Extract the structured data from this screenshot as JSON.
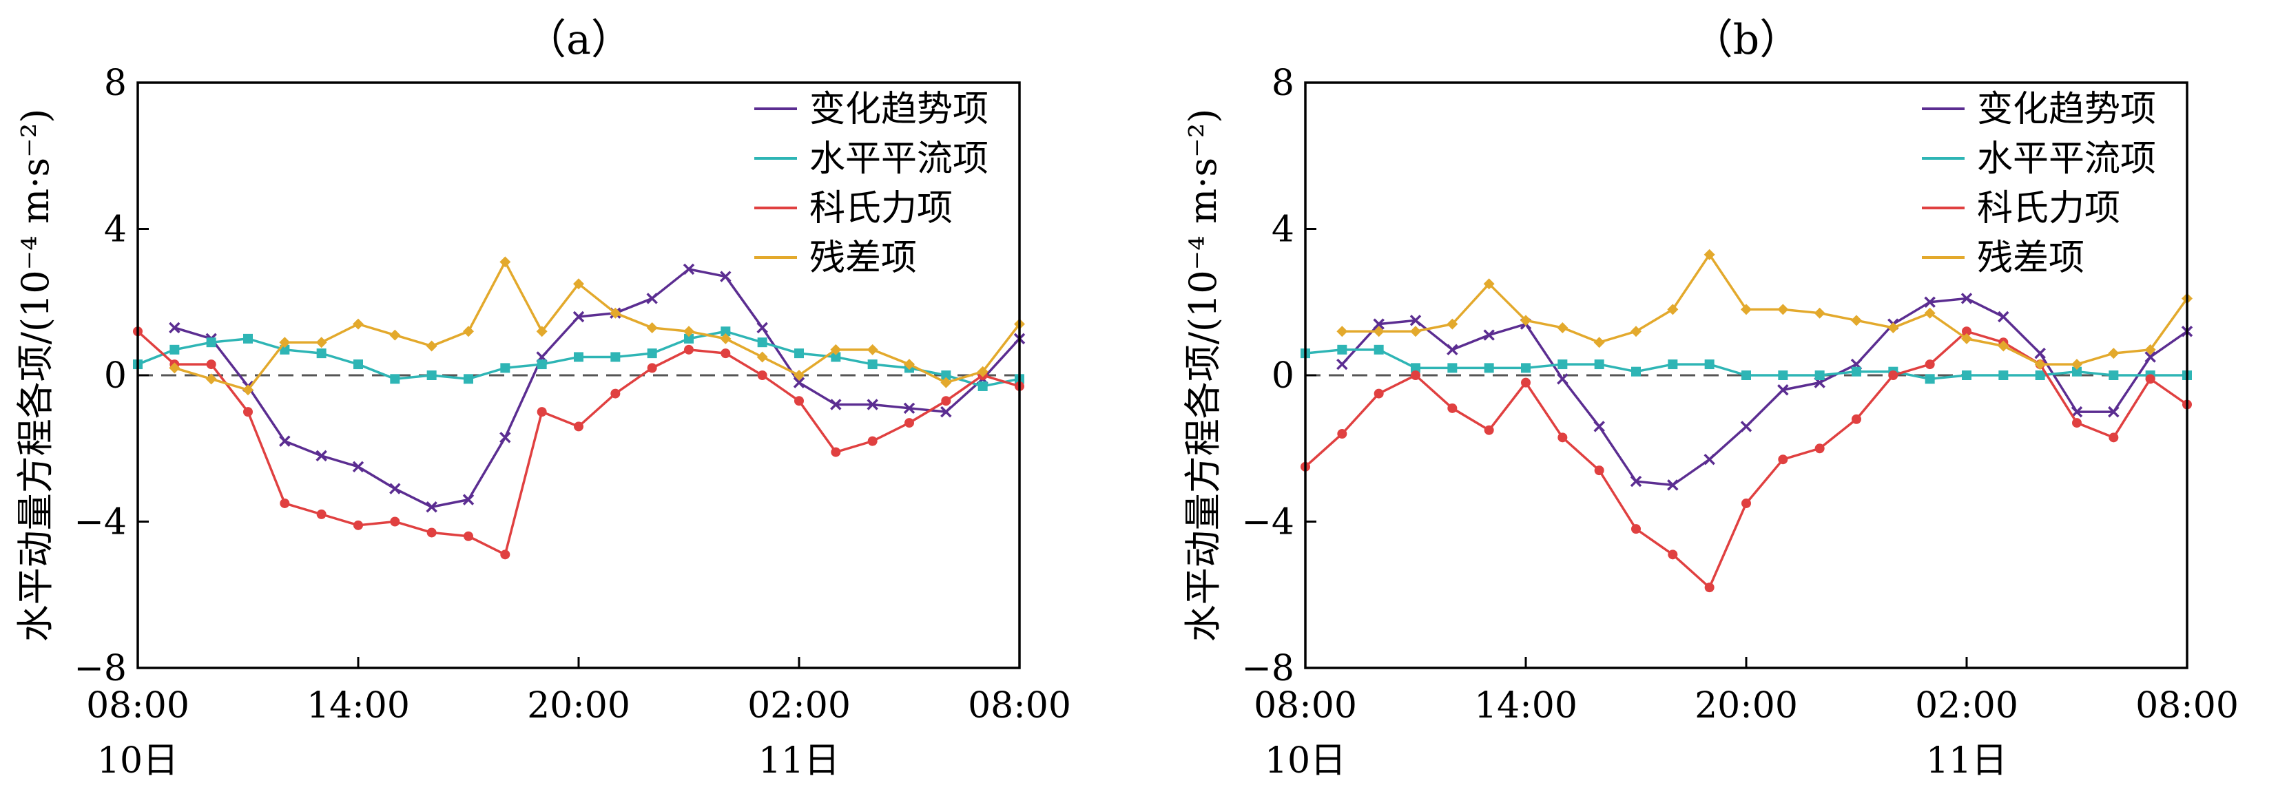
{
  "chart_data": [
    {
      "type": "line",
      "title": "（a）",
      "ylabel": "水平动量方程各项/(10⁻⁴ m·s⁻²)",
      "ylim": [
        -8,
        8
      ],
      "yticks": [
        "8",
        "4",
        "0",
        "−4",
        "−8"
      ],
      "ytick_values": [
        8,
        4,
        0,
        -4,
        -8
      ],
      "xlim": [
        0,
        24
      ],
      "xticks": [
        {
          "value": 0,
          "time": "08:00",
          "date": "10日"
        },
        {
          "value": 6,
          "time": "14:00",
          "date": ""
        },
        {
          "value": 12,
          "time": "20:00",
          "date": ""
        },
        {
          "value": 18,
          "time": "02:00",
          "date": "11日"
        },
        {
          "value": 24,
          "time": "08:00",
          "date": ""
        }
      ],
      "zero_line": "dashed",
      "legend_position": "top-right",
      "series": [
        {
          "name": "变化趋势项",
          "color": "#5b2d91",
          "marker": "x",
          "x": [
            1,
            2,
            3,
            4,
            5,
            6,
            7,
            8,
            9,
            10,
            11,
            12,
            13,
            14,
            15,
            16,
            17,
            18,
            19,
            20,
            21,
            22,
            23,
            24
          ],
          "y": [
            1.3,
            1.0,
            -0.3,
            -1.8,
            -2.2,
            -2.5,
            -3.1,
            -3.6,
            -3.4,
            -1.7,
            0.5,
            1.6,
            1.7,
            2.1,
            2.9,
            2.7,
            1.3,
            -0.2,
            -0.8,
            -0.8,
            -0.9,
            -1.0,
            -0.1,
            1.0
          ]
        },
        {
          "name": "水平平流项",
          "color": "#2eb5b5",
          "marker": "square",
          "x": [
            0,
            1,
            2,
            3,
            4,
            5,
            6,
            7,
            8,
            9,
            10,
            11,
            12,
            13,
            14,
            15,
            16,
            17,
            18,
            19,
            20,
            21,
            22,
            23,
            24
          ],
          "y": [
            0.3,
            0.7,
            0.9,
            1.0,
            0.7,
            0.6,
            0.3,
            -0.1,
            0.0,
            -0.1,
            0.2,
            0.3,
            0.5,
            0.5,
            0.6,
            1.0,
            1.2,
            0.9,
            0.6,
            0.5,
            0.3,
            0.2,
            0.0,
            -0.3,
            -0.1
          ]
        },
        {
          "name": "科氏力项",
          "color": "#e04040",
          "marker": "dot",
          "x": [
            0,
            1,
            2,
            3,
            4,
            5,
            6,
            7,
            8,
            9,
            10,
            11,
            12,
            13,
            14,
            15,
            16,
            17,
            18,
            19,
            20,
            21,
            22,
            23,
            24
          ],
          "y": [
            1.2,
            0.3,
            0.3,
            -1.0,
            -3.5,
            -3.8,
            -4.1,
            -4.0,
            -4.3,
            -4.4,
            -4.9,
            -1.0,
            -1.4,
            -0.5,
            0.2,
            0.7,
            0.6,
            0.0,
            -0.7,
            -2.1,
            -1.8,
            -1.3,
            -0.7,
            0.0,
            -0.3
          ]
        },
        {
          "name": "残差项",
          "color": "#e3a92c",
          "marker": "diamond",
          "x": [
            1,
            2,
            3,
            4,
            5,
            6,
            7,
            8,
            9,
            10,
            11,
            12,
            13,
            14,
            15,
            16,
            17,
            18,
            19,
            20,
            21,
            22,
            23,
            24
          ],
          "y": [
            0.2,
            -0.1,
            -0.4,
            0.9,
            0.9,
            1.4,
            1.1,
            0.8,
            1.2,
            3.1,
            1.2,
            2.5,
            1.7,
            1.3,
            1.2,
            1.0,
            0.5,
            0.0,
            0.7,
            0.7,
            0.3,
            -0.2,
            0.1,
            1.4
          ]
        }
      ]
    },
    {
      "type": "line",
      "title": "（b）",
      "ylabel": "水平动量方程各项/(10⁻⁴ m·s⁻²)",
      "ylim": [
        -8,
        8
      ],
      "yticks": [
        "8",
        "4",
        "0",
        "−4",
        "−8"
      ],
      "ytick_values": [
        8,
        4,
        0,
        -4,
        -8
      ],
      "xlim": [
        0,
        24
      ],
      "xticks": [
        {
          "value": 0,
          "time": "08:00",
          "date": "10日"
        },
        {
          "value": 6,
          "time": "14:00",
          "date": ""
        },
        {
          "value": 12,
          "time": "20:00",
          "date": ""
        },
        {
          "value": 18,
          "time": "02:00",
          "date": "11日"
        },
        {
          "value": 24,
          "time": "08:00",
          "date": ""
        }
      ],
      "zero_line": "dashed",
      "legend_position": "top-right",
      "series": [
        {
          "name": "变化趋势项",
          "color": "#5b2d91",
          "marker": "x",
          "x": [
            1,
            2,
            3,
            4,
            5,
            6,
            7,
            8,
            9,
            10,
            11,
            12,
            13,
            14,
            15,
            16,
            17,
            18,
            19,
            20,
            21,
            22,
            23,
            24
          ],
          "y": [
            0.3,
            1.4,
            1.5,
            0.7,
            1.1,
            1.4,
            -0.1,
            -1.4,
            -2.9,
            -3.0,
            -2.3,
            -1.4,
            -0.4,
            -0.2,
            0.3,
            1.4,
            2.0,
            2.1,
            1.6,
            0.6,
            -1.0,
            -1.0,
            0.5,
            1.2
          ]
        },
        {
          "name": "水平平流项",
          "color": "#2eb5b5",
          "marker": "square",
          "x": [
            0,
            1,
            2,
            3,
            4,
            5,
            6,
            7,
            8,
            9,
            10,
            11,
            12,
            13,
            14,
            15,
            16,
            17,
            18,
            19,
            20,
            21,
            22,
            23,
            24
          ],
          "y": [
            0.6,
            0.7,
            0.7,
            0.2,
            0.2,
            0.2,
            0.2,
            0.3,
            0.3,
            0.1,
            0.3,
            0.3,
            0.0,
            0.0,
            0.0,
            0.1,
            0.1,
            -0.1,
            0.0,
            0.0,
            0.0,
            0.1,
            0.0,
            0.0,
            0.0
          ]
        },
        {
          "name": "科氏力项",
          "color": "#e04040",
          "marker": "dot",
          "x": [
            0,
            1,
            2,
            3,
            4,
            5,
            6,
            7,
            8,
            9,
            10,
            11,
            12,
            13,
            14,
            15,
            16,
            17,
            18,
            19,
            20,
            21,
            22,
            23,
            24
          ],
          "y": [
            -2.5,
            -1.6,
            -0.5,
            0.0,
            -0.9,
            -1.5,
            -0.2,
            -1.7,
            -2.6,
            -4.2,
            -4.9,
            -5.8,
            -3.5,
            -2.3,
            -2.0,
            -1.2,
            0.0,
            0.3,
            1.2,
            0.9,
            0.3,
            -1.3,
            -1.7,
            -0.1,
            -0.8
          ]
        },
        {
          "name": "残差项",
          "color": "#e3a92c",
          "marker": "diamond",
          "x": [
            1,
            2,
            3,
            4,
            5,
            6,
            7,
            8,
            9,
            10,
            11,
            12,
            13,
            14,
            15,
            16,
            17,
            18,
            19,
            20,
            21,
            22,
            23,
            24
          ],
          "y": [
            1.2,
            1.2,
            1.2,
            1.4,
            2.5,
            1.5,
            1.3,
            0.9,
            1.2,
            1.8,
            3.3,
            1.8,
            1.8,
            1.7,
            1.5,
            1.3,
            1.7,
            1.0,
            0.8,
            0.3,
            0.3,
            0.6,
            0.7,
            2.1
          ]
        }
      ]
    }
  ]
}
